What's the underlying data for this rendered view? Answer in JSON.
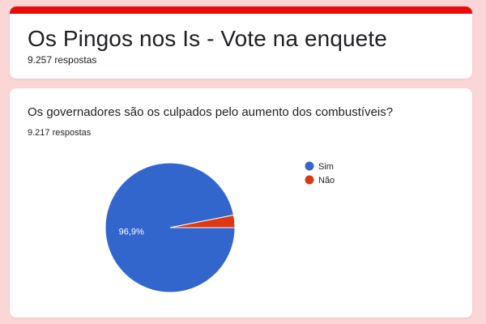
{
  "header": {
    "title": "Os Pingos nos Is - Vote na enquete",
    "responses": "9.257 respostas",
    "accent_color": "#ee0a0a"
  },
  "question": {
    "title": "Os governadores são os culpados pelo aumento dos combustíveis?",
    "responses": "9.217 respostas"
  },
  "chart_data": {
    "type": "pie",
    "categories": [
      "Sim",
      "Não"
    ],
    "values": [
      96.9,
      3.1
    ],
    "value_unit": "%",
    "data_labels": [
      "96,9%",
      ""
    ],
    "colors": [
      "#3366cc",
      "#dc3912"
    ],
    "legend_placement": "right"
  }
}
